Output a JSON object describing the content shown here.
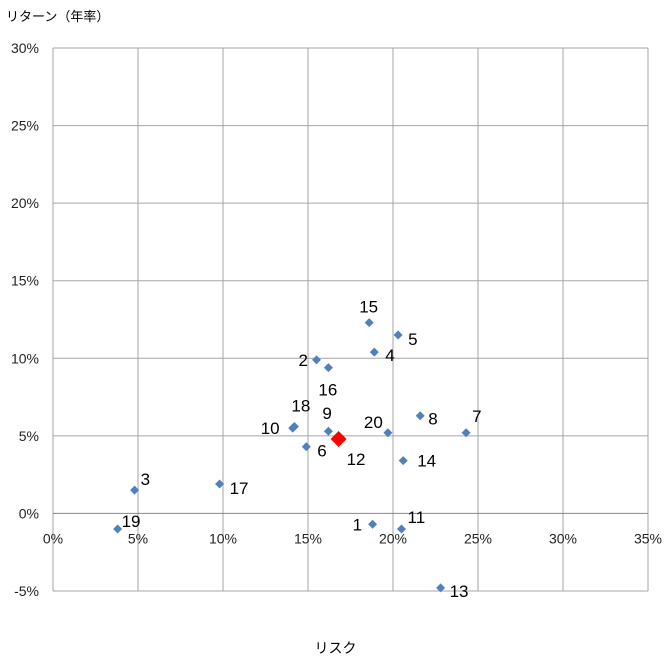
{
  "chart_data": {
    "type": "scatter",
    "title": "",
    "xlabel": "リスク",
    "ylabel": "リターン（年率）",
    "xlim": [
      0,
      35
    ],
    "ylim": [
      -5,
      30
    ],
    "x_ticks": [
      "0%",
      "5%",
      "10%",
      "15%",
      "20%",
      "25%",
      "30%",
      "35%"
    ],
    "y_ticks": [
      "-5%",
      "0%",
      "5%",
      "10%",
      "15%",
      "20%",
      "25%",
      "30%"
    ],
    "grid": true,
    "legend": "none",
    "colors": {
      "default": "#4F81BD",
      "highlight": "#FF0000"
    },
    "points": [
      {
        "label": "1",
        "x": 18.8,
        "y": -0.7
      },
      {
        "label": "2",
        "x": 15.5,
        "y": 9.9
      },
      {
        "label": "3",
        "x": 4.8,
        "y": 1.5
      },
      {
        "label": "4",
        "x": 18.9,
        "y": 10.4
      },
      {
        "label": "5",
        "x": 20.3,
        "y": 11.5
      },
      {
        "label": "6",
        "x": 14.9,
        "y": 4.3
      },
      {
        "label": "7",
        "x": 24.3,
        "y": 5.2
      },
      {
        "label": "8",
        "x": 21.6,
        "y": 6.3
      },
      {
        "label": "9",
        "x": 16.2,
        "y": 5.3
      },
      {
        "label": "10",
        "x": 14.1,
        "y": 5.5
      },
      {
        "label": "11",
        "x": 20.5,
        "y": -1.0
      },
      {
        "label": "12",
        "x": 16.8,
        "y": 4.8,
        "highlight": true
      },
      {
        "label": "13",
        "x": 22.8,
        "y": -4.8
      },
      {
        "label": "14",
        "x": 20.6,
        "y": 3.4
      },
      {
        "label": "15",
        "x": 18.6,
        "y": 12.3
      },
      {
        "label": "16",
        "x": 16.2,
        "y": 9.4
      },
      {
        "label": "17",
        "x": 9.8,
        "y": 1.9
      },
      {
        "label": "18",
        "x": 14.2,
        "y": 5.6
      },
      {
        "label": "19",
        "x": 3.8,
        "y": -1.0
      },
      {
        "label": "20",
        "x": 19.7,
        "y": 5.2
      }
    ]
  }
}
